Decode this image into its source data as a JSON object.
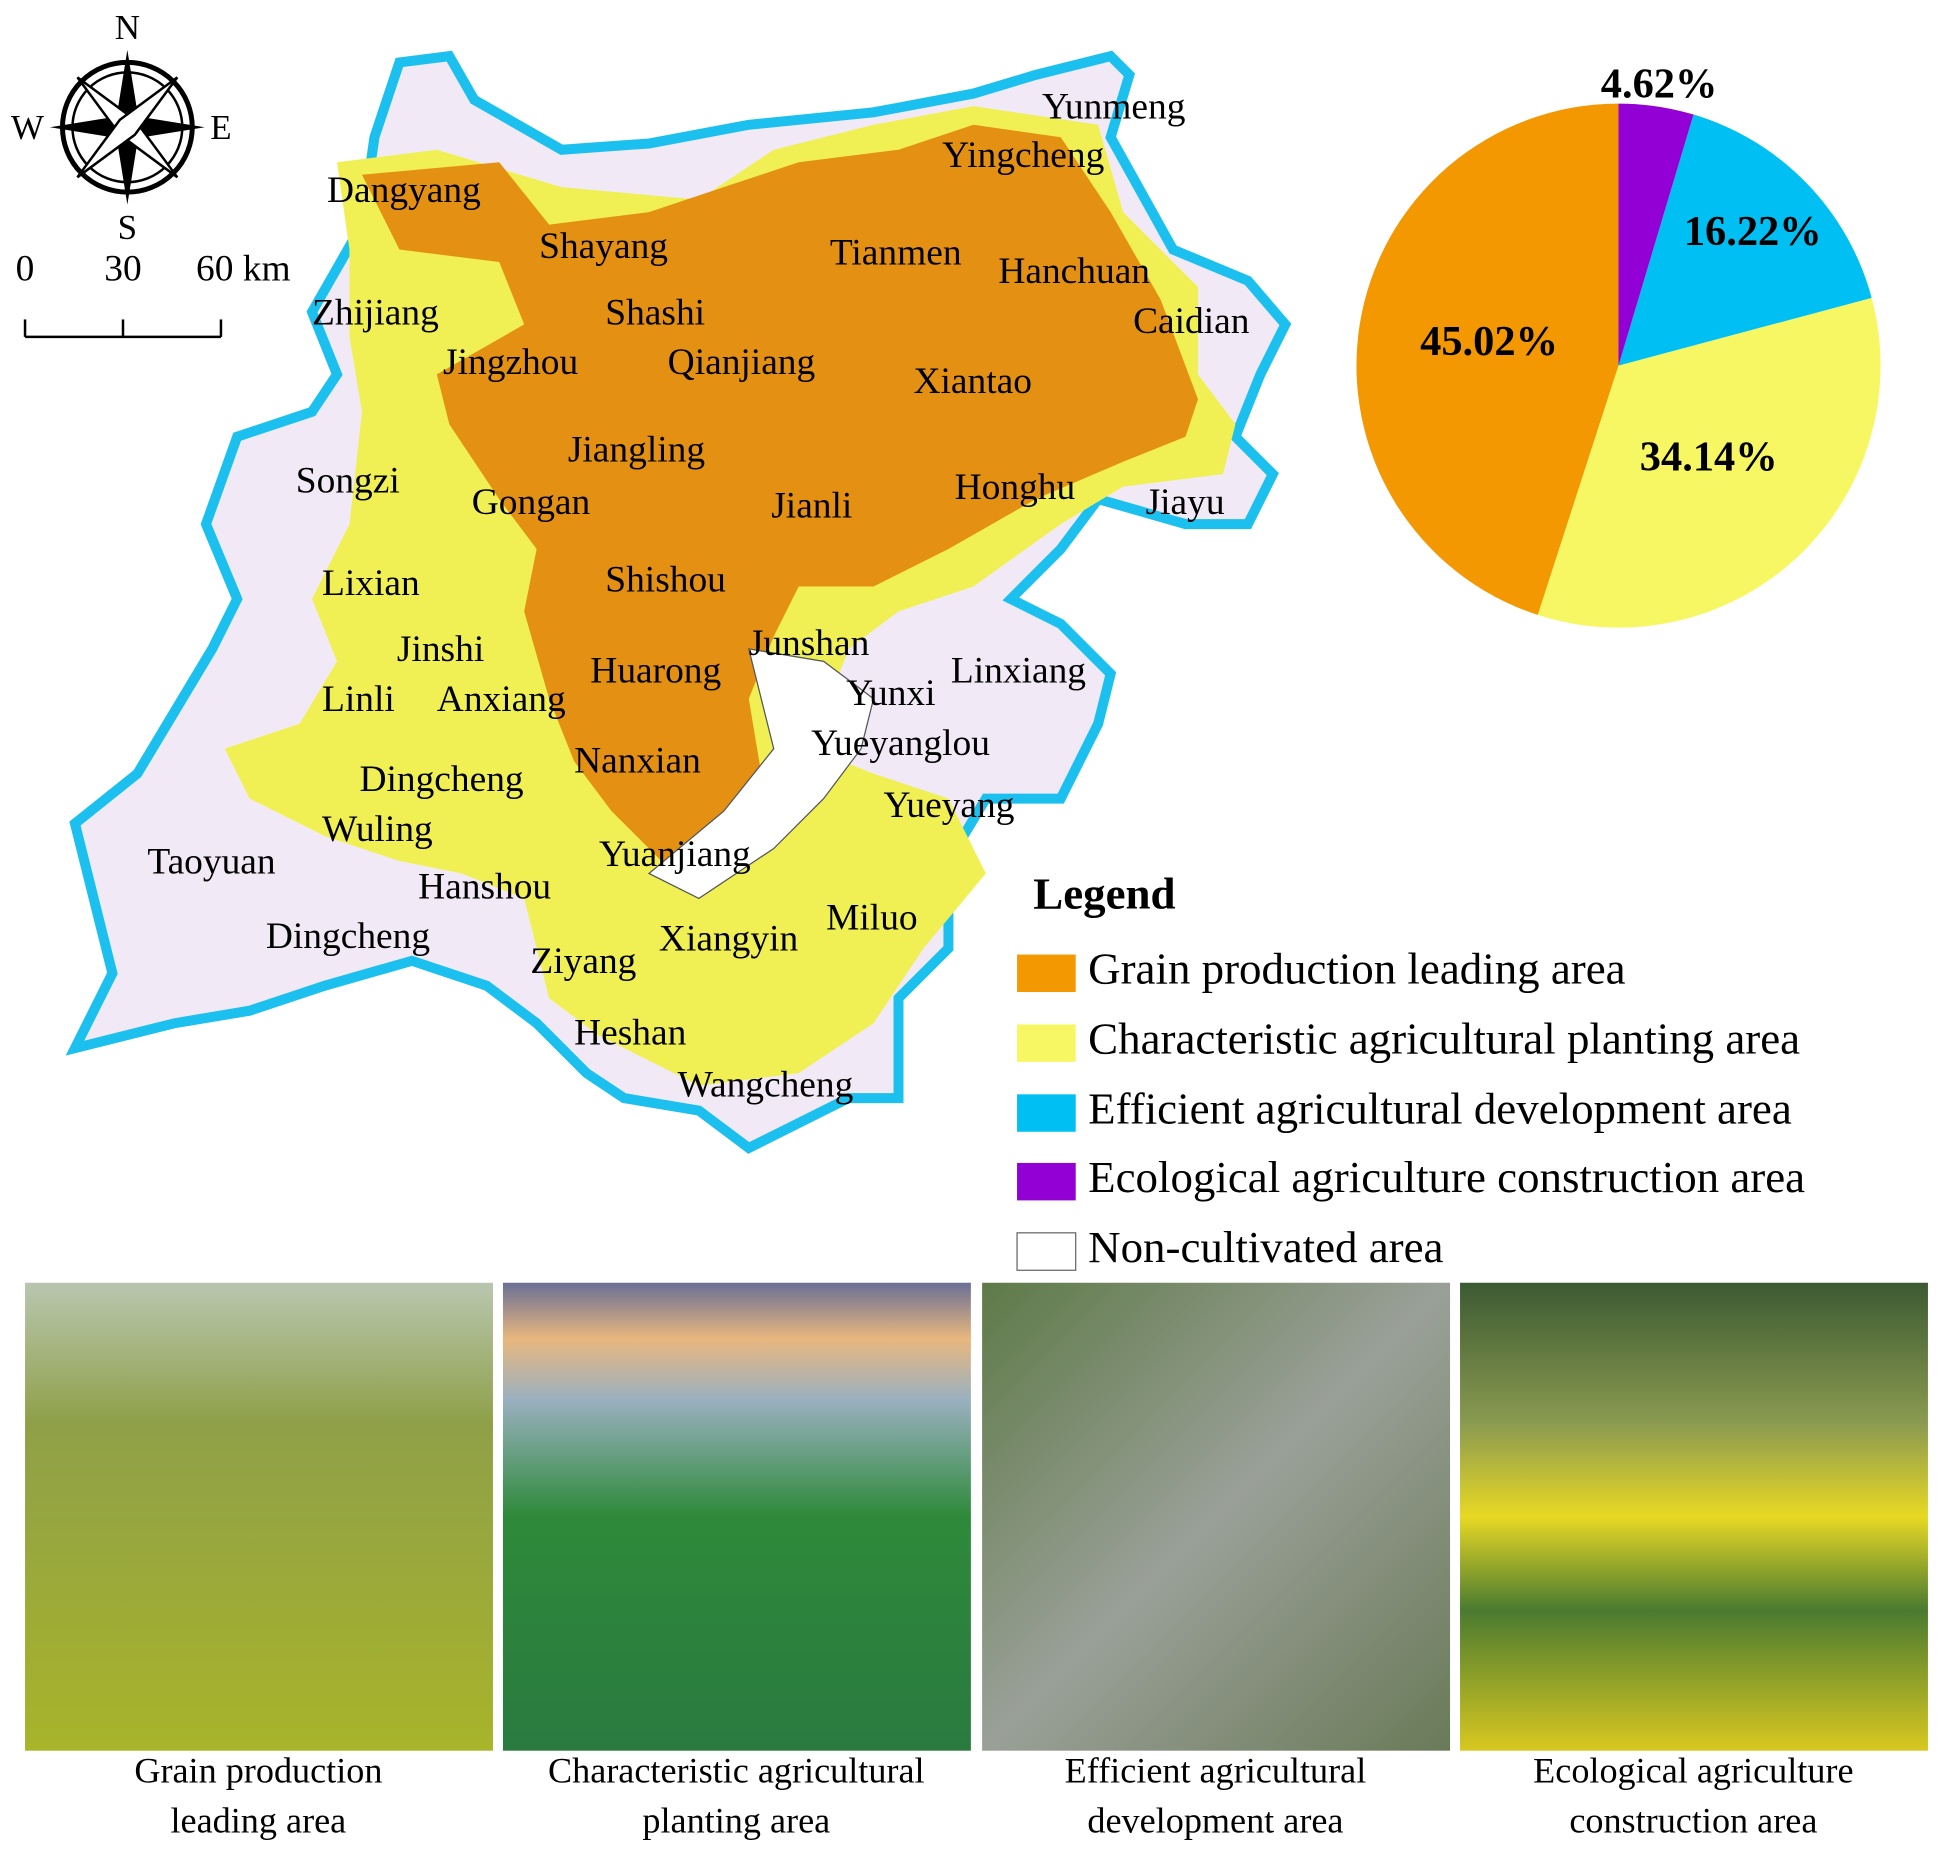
{
  "map": {
    "compass": {
      "north": "N",
      "south": "S",
      "east": "E",
      "west": "W"
    },
    "scale_bar": {
      "ticks": [
        0,
        30,
        {
          "value": 60,
          "label": "60 km"
        }
      ],
      "max": 60
    },
    "places": [
      "Yunmeng",
      "Yingcheng",
      "Dangyang",
      "Shayang",
      "Tianmen",
      "Hanchuan",
      "Caidian",
      "Zhijiang",
      "Shashi",
      "Jingzhou",
      "Qianjiang",
      "Xiantao",
      "Jiangling",
      "Songzi",
      "Gongan",
      "Jianli",
      "Honghu",
      "Jiayu",
      "Lixian",
      "Shishou",
      "Junshan",
      "Jinshi",
      "Huarong",
      "Linxiang",
      "Yunxi",
      "Linli",
      "Anxiang",
      "Yueyanglou",
      "Nanxian",
      "Dingcheng",
      "Yueyang",
      "Wuling",
      "Taoyuan",
      "Yuanjiang",
      "Hanshou",
      "Miluo",
      "Dingcheng",
      "Xiangyin",
      "Ziyang",
      "Heshan",
      "Wangcheng"
    ]
  },
  "chart_data": {
    "type": "pie",
    "categories": [
      "Grain production leading area",
      "Characteristic agricultural planting area",
      "Efficient agricultural development area",
      "Ecological agriculture construction area"
    ],
    "values": [
      45.02,
      34.14,
      16.22,
      4.62
    ],
    "value_labels": [
      "45.02%",
      "34.14%",
      "16.22%",
      "4.62%"
    ],
    "colors": [
      "#f39800",
      "#f7f763",
      "#00bff3",
      "#9300d6"
    ]
  },
  "legend": {
    "title": "Legend",
    "extra_entry": {
      "name": "Non-cultivated area",
      "color": "#ffffff"
    }
  },
  "photos": [
    {
      "caption": [
        "Grain production",
        "leading area"
      ]
    },
    {
      "caption": [
        "Characteristic agricultural",
        "planting area"
      ]
    },
    {
      "caption": [
        "Efficient agricultural",
        "development area"
      ]
    },
    {
      "caption": [
        "Ecological agriculture",
        "construction area"
      ]
    }
  ]
}
